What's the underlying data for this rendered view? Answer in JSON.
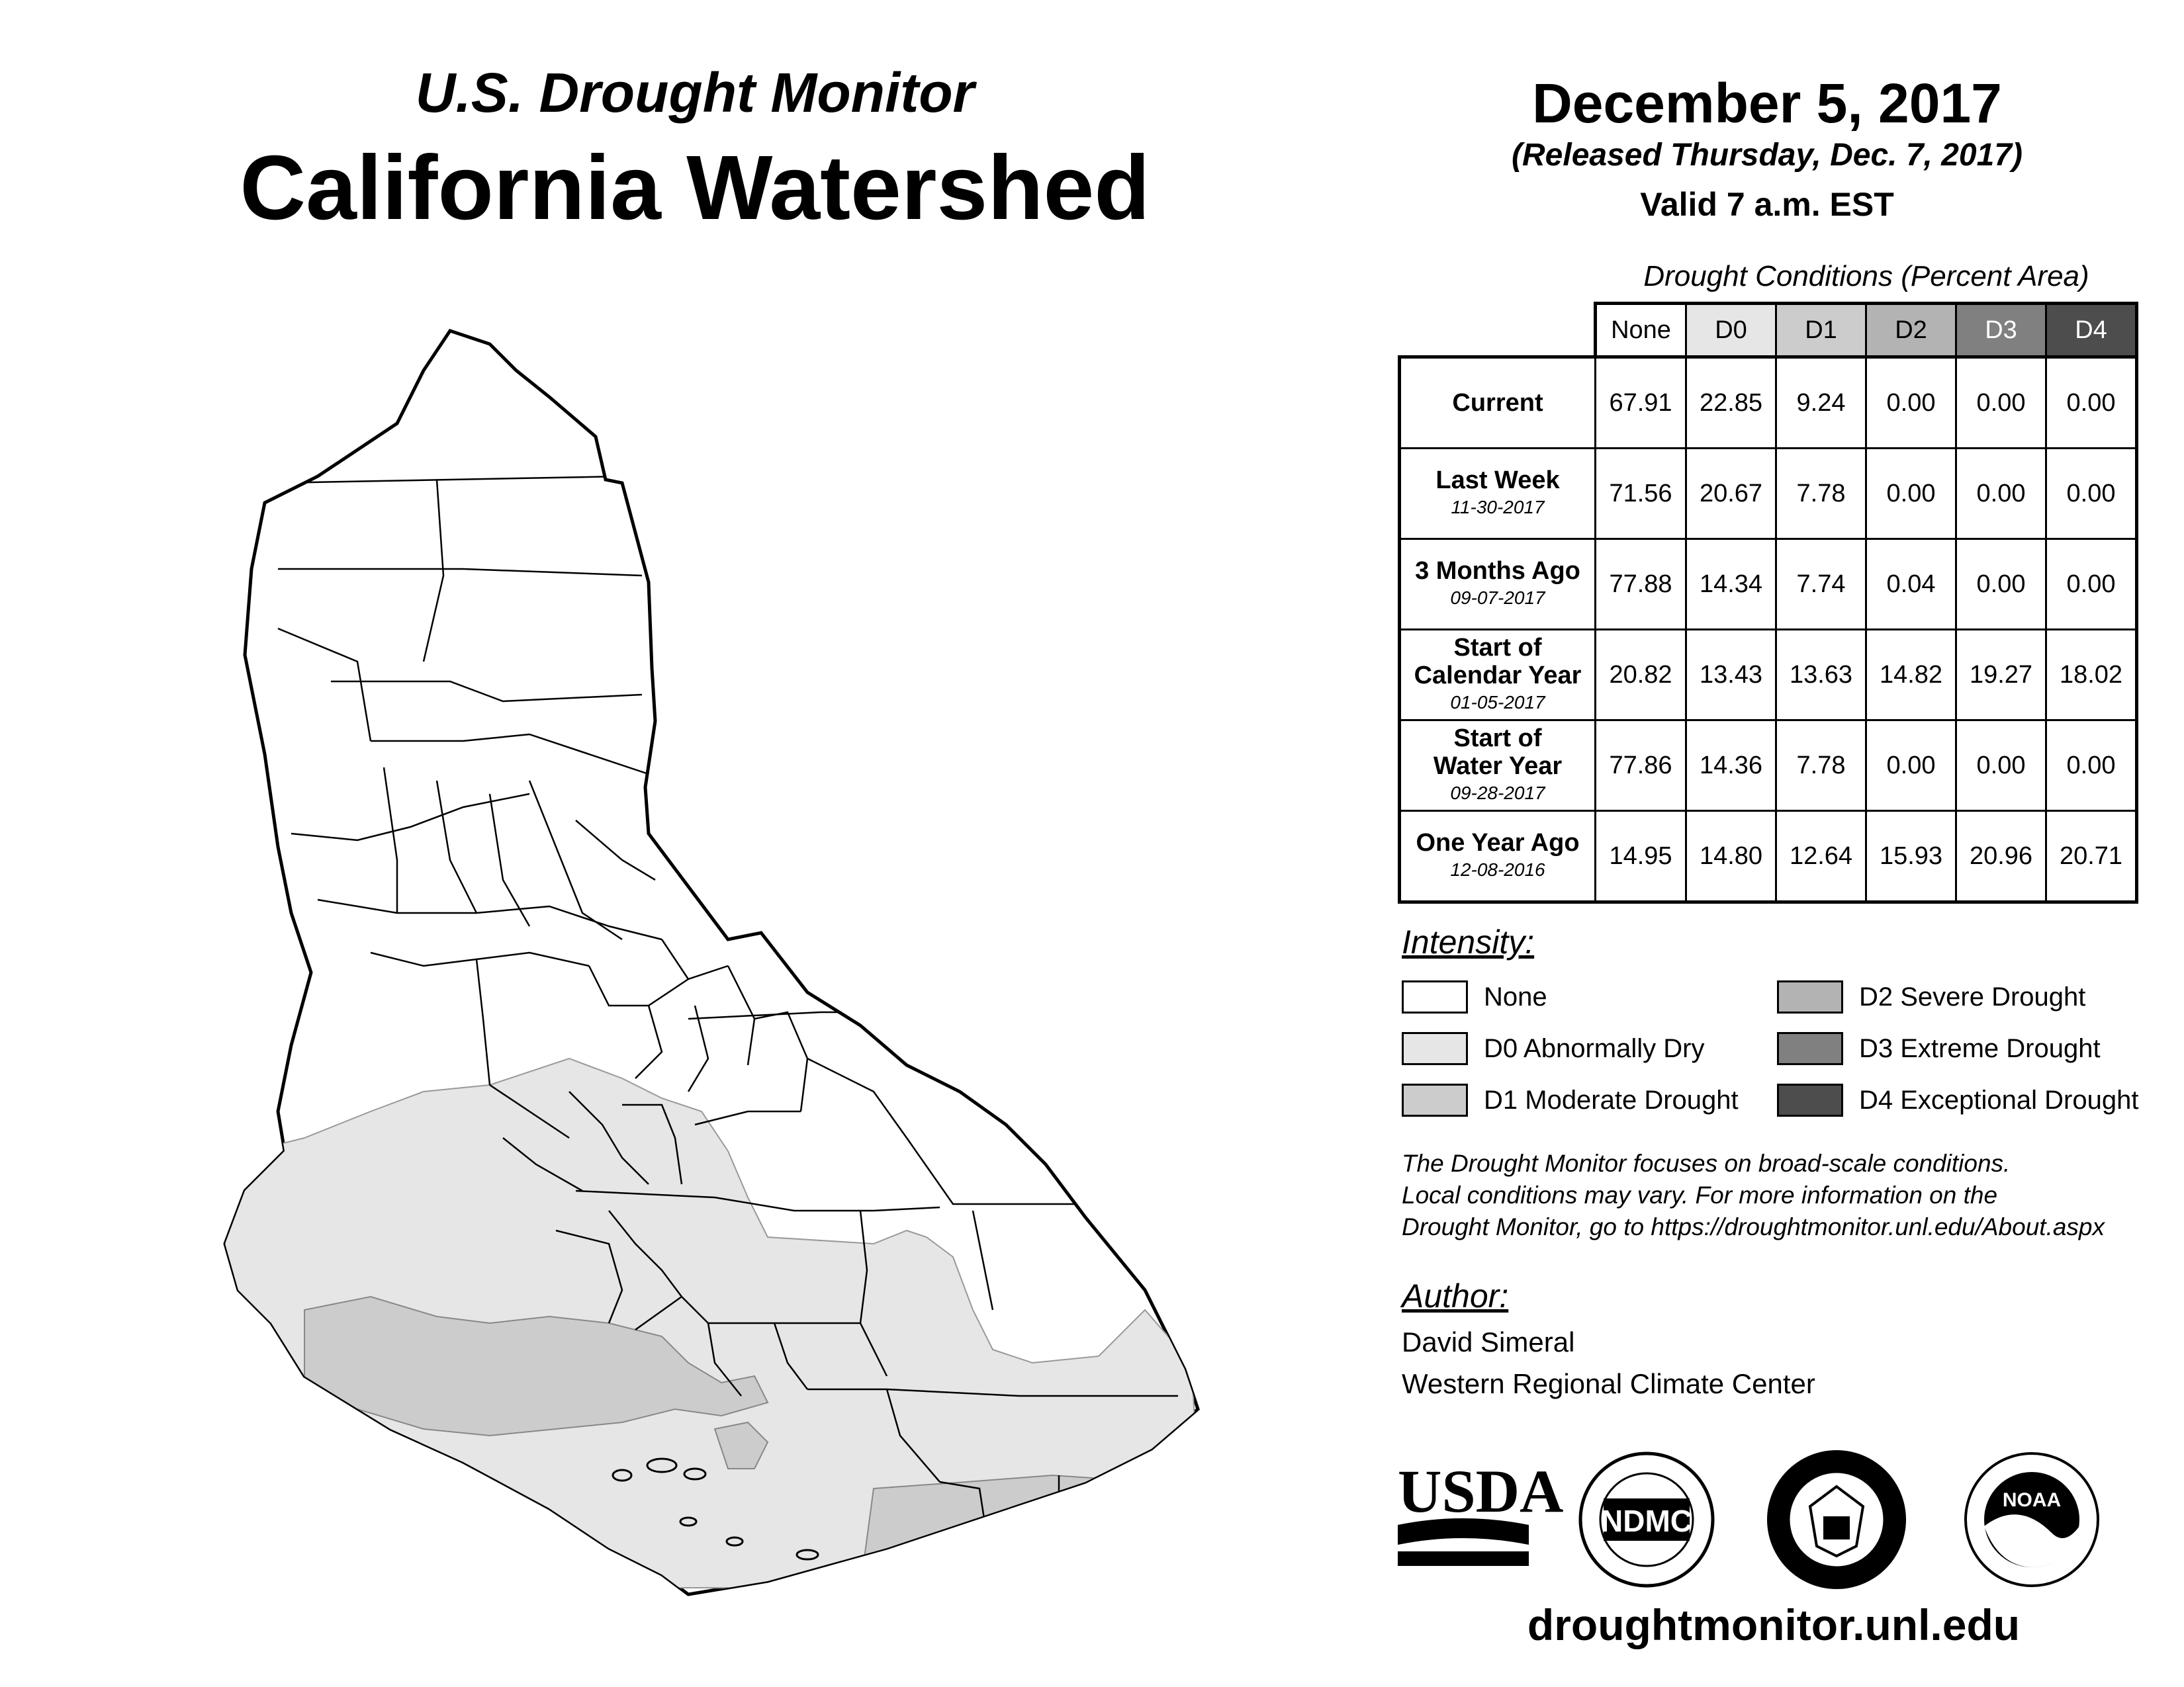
{
  "header": {
    "subtitle": "U.S. Drought Monitor",
    "title": "California Watershed",
    "date": "December 5, 2017",
    "released": "(Released Thursday, Dec. 7, 2017)",
    "valid": "Valid 7 a.m. EST"
  },
  "table": {
    "caption": "Drought Conditions (Percent Area)",
    "columns": [
      "None",
      "D0",
      "D1",
      "D2",
      "D3",
      "D4"
    ],
    "column_colors": [
      "#ffffff",
      "#e6e6e6",
      "#cccccc",
      "#b3b3b3",
      "#808080",
      "#4d4d4d"
    ],
    "rows": [
      {
        "label": "Current",
        "label2": "",
        "date": "",
        "values": [
          "67.91",
          "22.85",
          "9.24",
          "0.00",
          "0.00",
          "0.00"
        ]
      },
      {
        "label": "Last Week",
        "label2": "",
        "date": "11-30-2017",
        "values": [
          "71.56",
          "20.67",
          "7.78",
          "0.00",
          "0.00",
          "0.00"
        ]
      },
      {
        "label": "3 Months Ago",
        "label2": "",
        "date": "09-07-2017",
        "values": [
          "77.88",
          "14.34",
          "7.74",
          "0.04",
          "0.00",
          "0.00"
        ]
      },
      {
        "label": "Start of",
        "label2": "Calendar Year",
        "date": "01-05-2017",
        "values": [
          "20.82",
          "13.43",
          "13.63",
          "14.82",
          "19.27",
          "18.02"
        ]
      },
      {
        "label": "Start of",
        "label2": "Water Year",
        "date": "09-28-2017",
        "values": [
          "77.86",
          "14.36",
          "7.78",
          "0.00",
          "0.00",
          "0.00"
        ]
      },
      {
        "label": "One Year Ago",
        "label2": "",
        "date": "12-08-2016",
        "values": [
          "14.95",
          "14.80",
          "12.64",
          "15.93",
          "20.96",
          "20.71"
        ]
      }
    ]
  },
  "legend": {
    "heading": "Intensity:",
    "items": [
      {
        "label": "None",
        "color": "#ffffff"
      },
      {
        "label": "D0 Abnormally Dry",
        "color": "#e6e6e6"
      },
      {
        "label": "D1 Moderate Drought",
        "color": "#cccccc"
      },
      {
        "label": "D2 Severe Drought",
        "color": "#b3b3b3"
      },
      {
        "label": "D3 Extreme Drought",
        "color": "#808080"
      },
      {
        "label": "D4 Exceptional Drought",
        "color": "#4d4d4d"
      }
    ]
  },
  "disclaimer": {
    "line1": "The Drought Monitor focuses on broad-scale conditions.",
    "line2": "Local conditions may vary. For more information on the",
    "line3": "Drought Monitor, go to https://droughtmonitor.unl.edu/About.aspx"
  },
  "author": {
    "heading": "Author:",
    "name": "David Simeral",
    "org": "Western Regional Climate Center"
  },
  "logos": {
    "usda": "USDA",
    "ndmc": "NDMC",
    "noaa": "NOAA"
  },
  "website": "droughtmonitor.unl.edu"
}
